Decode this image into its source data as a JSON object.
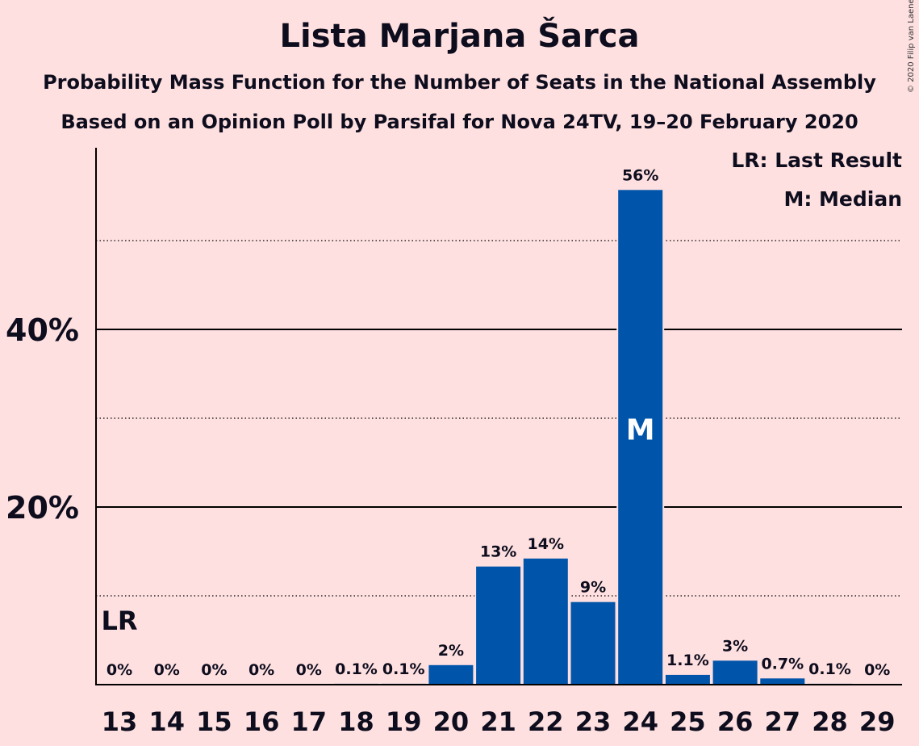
{
  "title": "Lista Marjana Šarca",
  "subtitle_1": "Probability Mass Function for the Number of Seats in the National Assembly",
  "subtitle_2": "Based on an Opinion Poll by Parsifal for Nova 24TV, 19–20 February 2020",
  "copyright": "© 2020 Filip van Laenen",
  "legend": {
    "last_result": "LR: Last Result",
    "median": "M: Median"
  },
  "colors": {
    "background": "#ffe0e0",
    "bar": "#0055aa",
    "text": "#0d0d1e"
  },
  "chart_data": {
    "type": "bar",
    "categories": [
      "13",
      "14",
      "15",
      "16",
      "17",
      "18",
      "19",
      "20",
      "21",
      "22",
      "23",
      "24",
      "25",
      "26",
      "27",
      "28",
      "29"
    ],
    "values": [
      0,
      0,
      0,
      0,
      0,
      0.1,
      0.1,
      2.2,
      13.3,
      14.2,
      9.3,
      55.7,
      1.1,
      2.7,
      0.7,
      0.1,
      0
    ],
    "labels": [
      "0%",
      "0%",
      "0%",
      "0%",
      "0%",
      "0.1%",
      "0.1%",
      "2%",
      "13%",
      "14%",
      "9%",
      "56%",
      "1.1%",
      "3%",
      "0.7%",
      "0.1%",
      "0%"
    ],
    "ylim": [
      0,
      60
    ],
    "y_ticks": [
      {
        "value": 20,
        "label": "20%"
      },
      {
        "value": 40,
        "label": "40%"
      }
    ],
    "y_minor_gridlines": [
      10,
      30,
      50
    ],
    "last_result_category": "13",
    "last_result_marker": "LR",
    "median_category": "24",
    "median_marker": "M",
    "grid": true,
    "legend_position": "top-right"
  }
}
